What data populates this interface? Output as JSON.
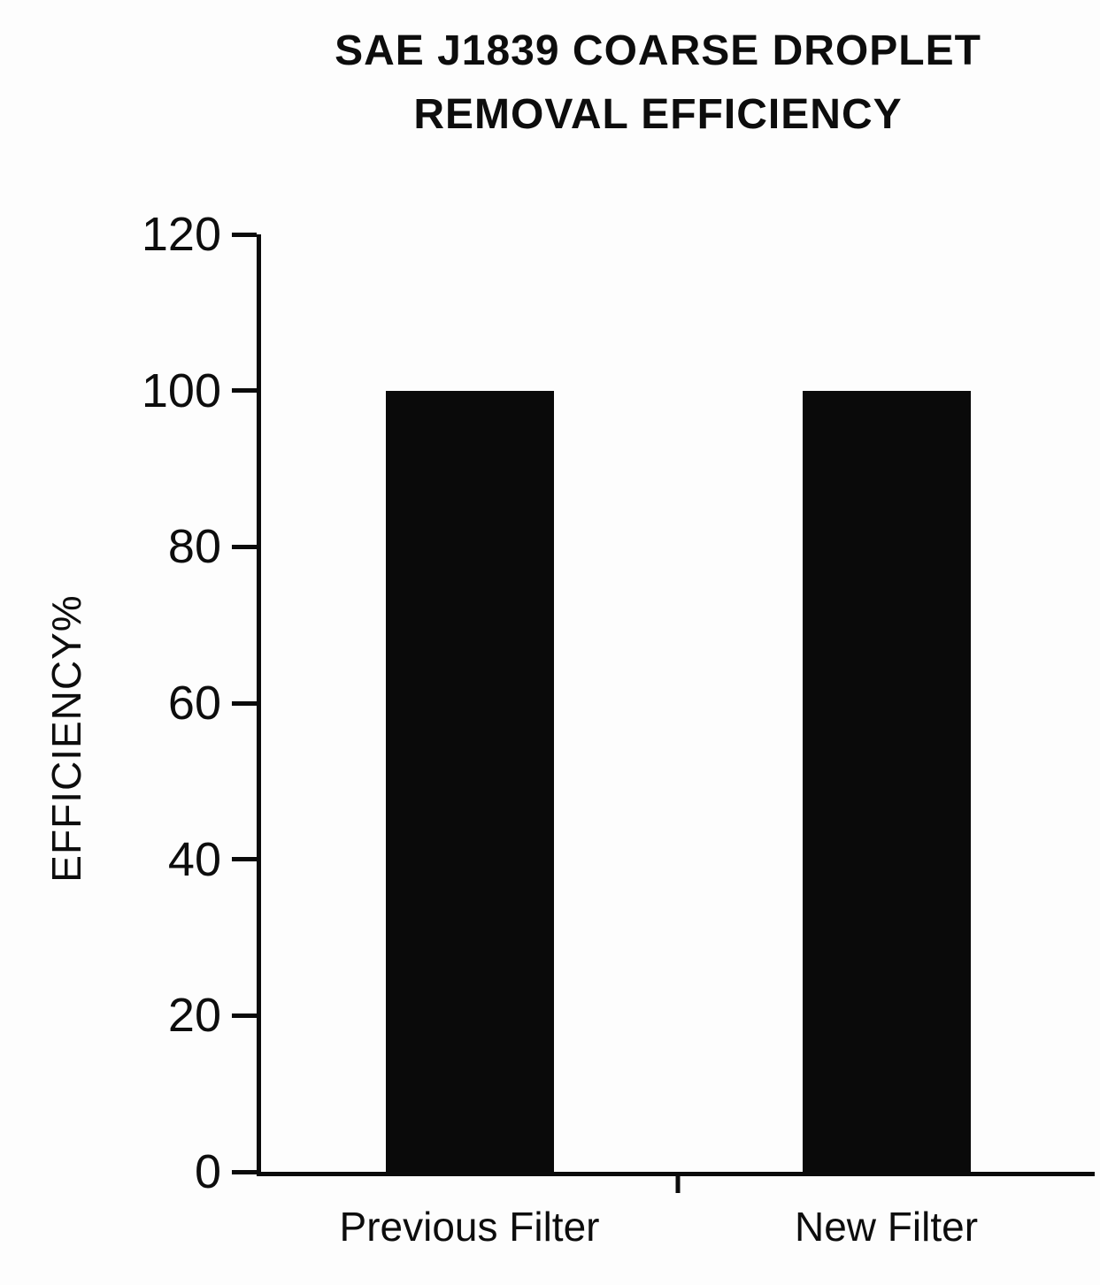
{
  "chart_data": {
    "type": "bar",
    "title_line1": "SAE J1839 COARSE DROPLET",
    "title_line2": "REMOVAL EFFICIENCY",
    "ylabel": "EFFICIENCY%",
    "categories": [
      "Previous Filter",
      "New Filter"
    ],
    "values": [
      100,
      100
    ],
    "ylim": [
      0,
      120
    ],
    "yticks": [
      0,
      20,
      40,
      60,
      80,
      100,
      120
    ],
    "bar_color": "#0a0a0a",
    "axis_color": "#0b0b0b",
    "background_color": "#fdfdfd",
    "grid": false,
    "legend_position": "none"
  }
}
